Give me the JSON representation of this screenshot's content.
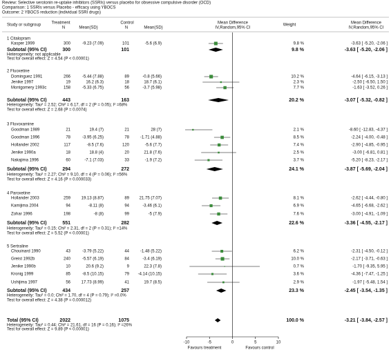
{
  "header": {
    "review": "Review:   Selective serotonin re-uptake inhibitors (SSRIs) versus placebo for obsessive compulsive disorder (OCD)",
    "comparison": "Comparison:   1 SSRIs versus Placebo - efficacy using YBOCS",
    "outcome": "Outcome:   2 YBOCS reduction (individual SSRI drugs)"
  },
  "chart_data": {
    "type": "forest",
    "columns": {
      "study": "Study or subgroup",
      "treatment": "Treatment",
      "n_t": "N",
      "mean_t": "Mean(SD)",
      "control": "Control",
      "n_c": "N",
      "mean_c": "Mean(SD)",
      "md": "Mean Difference",
      "md_method": "IV,Random,95% CI",
      "weight": "Weight",
      "md2": "Mean Difference",
      "md2_method": "IV,Random,95% CI"
    },
    "xlim": [
      -10,
      10
    ],
    "xticks": [
      -10,
      -5,
      0,
      5,
      10
    ],
    "favours_left": "Favours treatment",
    "favours_right": "Favours control",
    "study_color": "#3c8c3c",
    "diamond_color": "#000000",
    "groups": [
      {
        "title": "1 Citalopram",
        "studies": [
          {
            "name": "Kasper 1999",
            "n_t": 300,
            "mean_t": "-9.23 (7.09)",
            "n_c": 101,
            "mean_c": "-5.6 (6.9)",
            "weight": 9.8,
            "weight_label": "9.8 %",
            "md": -3.63,
            "ci": [
              -5.2,
              -2.06
            ],
            "ci_label": "-3.63 [ -5.20, -2.06 ]"
          }
        ],
        "subtotal": {
          "label": "Subtotal (95% CI)",
          "n_t": 300,
          "n_c": 101,
          "weight": 9.8,
          "weight_label": "9.8 %",
          "md": -3.63,
          "ci": [
            -5.2,
            -2.06
          ],
          "ci_label": "-3.63 [ -5.20, -2.06 ]"
        },
        "heterogeneity": "Heterogeneity: not applicable",
        "test": "Test for overall effect: Z = 4.54 (P < 0.00001)"
      },
      {
        "title": "2 Fluoxetine",
        "studies": [
          {
            "name": "Dominguez 1991",
            "n_t": 266,
            "mean_t": "-5.44 (7.88)",
            "n_c": 89,
            "mean_c": "-0.8 (5.66)",
            "weight": 10.2,
            "weight_label": "10.2 %",
            "md": -4.64,
            "ci": [
              -6.15,
              -3.13
            ],
            "ci_label": "-4.64 [ -6.15, -3.13 ]"
          },
          {
            "name": "Jenike 1997",
            "n_t": 19,
            "mean_t": "16.2 (6.3)",
            "n_c": 18,
            "mean_c": "18.7 (6.1)",
            "weight": 2.3,
            "weight_label": "2.3 %",
            "md": -2.5,
            "ci": [
              -6.5,
              1.5
            ],
            "ci_label": "-2.50 [ -6.50, 1.50 ]"
          },
          {
            "name": "Montgomery 1993c",
            "n_t": 158,
            "mean_t": "-5.33 (6.75)",
            "n_c": 56,
            "mean_c": "-3.7 (5.98)",
            "weight": 7.7,
            "weight_label": "7.7 %",
            "md": -1.63,
            "ci": [
              -3.52,
              0.26
            ],
            "ci_label": "-1.63 [ -3.52, 0.26 ]"
          }
        ],
        "subtotal": {
          "label": "Subtotal (95% CI)",
          "n_t": 443,
          "n_c": 163,
          "weight": 20.2,
          "weight_label": "20.2 %",
          "md": -3.07,
          "ci": [
            -5.32,
            -0.82
          ],
          "ci_label": "-3.07 [ -5.32, -0.82 ]"
        },
        "heterogeneity": "Heterogeneity: Tau² = 2.52; Chi² = 6.17, df = 2 (P = 0.05); I² =68%",
        "test": "Test for overall effect: Z = 2.68 (P = 0.0074)"
      },
      {
        "title": "3 Fluvoxamine",
        "studies": [
          {
            "name": "Goodman 1989",
            "n_t": 21,
            "mean_t": "19.4 (7)",
            "n_c": 21,
            "mean_c": "28 (7)",
            "weight": 2.1,
            "weight_label": "2.1 %",
            "md": -8.6,
            "ci": [
              -12.83,
              -4.37
            ],
            "ci_label": "-8.60 [ -12.83, -4.37 ]"
          },
          {
            "name": "Goodman 1996",
            "n_t": 78,
            "mean_t": "-3.95 (6.25)",
            "n_c": 78,
            "mean_c": "-1.71 (4.88)",
            "weight": 8.5,
            "weight_label": "8.5 %",
            "md": -2.24,
            "ci": [
              -4.0,
              -0.48
            ],
            "ci_label": "-2.24 [ -4.00, -0.48 ]"
          },
          {
            "name": "Hollander 2002",
            "n_t": 117,
            "mean_t": "-8.5 (7.6)",
            "n_c": 120,
            "mean_c": "-5.6 (7.7)",
            "weight": 7.4,
            "weight_label": "7.4 %",
            "md": -2.9,
            "ci": [
              -4.85,
              -0.95
            ],
            "ci_label": "-2.90 [ -4.85, -0.95 ]"
          },
          {
            "name": "Jenike 1990a",
            "n_t": 18,
            "mean_t": "18.8 (4)",
            "n_c": 20,
            "mean_c": "21.8 (7.6)",
            "weight": 2.5,
            "weight_label": "2.5 %",
            "md": -3.0,
            "ci": [
              -6.81,
              0.81
            ],
            "ci_label": "-3.00 [ -6.81, 0.81 ]"
          },
          {
            "name": "Nakajima 1996",
            "n_t": 60,
            "mean_t": "-7.1 (7.03)",
            "n_c": 33,
            "mean_c": "-1.9 (7.2)",
            "weight": 3.7,
            "weight_label": "3.7 %",
            "md": -5.2,
            "ci": [
              -8.23,
              -2.17
            ],
            "ci_label": "-5.20 [ -8.23, -2.17 ]"
          }
        ],
        "subtotal": {
          "label": "Subtotal (95% CI)",
          "n_t": 294,
          "n_c": 272,
          "weight": 24.1,
          "weight_label": "24.1 %",
          "md": -3.87,
          "ci": [
            -5.69,
            -2.04
          ],
          "ci_label": "-3.87 [ -5.69, -2.04 ]"
        },
        "heterogeneity": "Heterogeneity: Tau² = 2.27; Chi² = 9.10, df = 4 (P = 0.06); I² =56%",
        "test": "Test for overall effect: Z = 4.16 (P = 0.000033)"
      },
      {
        "title": "4 Paroxetine",
        "studies": [
          {
            "name": "Hollander 2003",
            "n_t": 259,
            "mean_t": "19.13 (8.87)",
            "n_c": 89,
            "mean_c": "21.75 (7.07)",
            "weight": 8.1,
            "weight_label": "8.1 %",
            "md": -2.62,
            "ci": [
              -4.44,
              -0.8
            ],
            "ci_label": "-2.62 [ -4.44, -0.80 ]"
          },
          {
            "name": "Kamijima 2004",
            "n_t": 94,
            "mean_t": "-8.11 (8)",
            "n_c": 94,
            "mean_c": "-3.46 (6.1)",
            "weight": 6.9,
            "weight_label": "6.9 %",
            "md": -4.65,
            "ci": [
              -6.68,
              -2.62
            ],
            "ci_label": "-4.65 [ -6.68, -2.62 ]"
          },
          {
            "name": "Zohar 1996",
            "n_t": 198,
            "mean_t": "-8 (8)",
            "n_c": 99,
            "mean_c": "-5 (7.9)",
            "weight": 7.6,
            "weight_label": "7.6 %",
            "md": -3.0,
            "ci": [
              -4.91,
              -1.09
            ],
            "ci_label": "-3.00 [ -4.91, -1.09 ]"
          }
        ],
        "subtotal": {
          "label": "Subtotal (95% CI)",
          "n_t": 551,
          "n_c": 282,
          "weight": 22.6,
          "weight_label": "22.6 %",
          "md": -3.36,
          "ci": [
            -4.55,
            -2.17
          ],
          "ci_label": "-3.36 [ -4.55, -2.17 ]"
        },
        "heterogeneity": "Heterogeneity: Tau² = 0.15; Chi² = 2.31, df = 2 (P = 0.31); I² =14%",
        "test": "Test for overall effect: Z = 5.52 (P < 0.00001)"
      },
      {
        "title": "5 Sertraline",
        "studies": [
          {
            "name": "Chouinard 1990",
            "n_t": 43,
            "mean_t": "-3.79 (5.22)",
            "n_c": 44,
            "mean_c": "-1.48 (5.22)",
            "weight": 6.2,
            "weight_label": "6.2 %",
            "md": -2.31,
            "ci": [
              -4.5,
              -0.12
            ],
            "ci_label": "-2.31 [ -4.50, -0.12 ]"
          },
          {
            "name": "Greist 1992b",
            "n_t": 240,
            "mean_t": "-5.57 (6.19)",
            "n_c": 84,
            "mean_c": "-3.4 (6.19)",
            "weight": 10.0,
            "weight_label": "10.0 %",
            "md": -2.17,
            "ci": [
              -3.71,
              -0.63
            ],
            "ci_label": "-2.17 [ -3.71, -0.63 ]"
          },
          {
            "name": "Jenike 1990b",
            "n_t": 10,
            "mean_t": "20.6 (9.2)",
            "n_c": 9,
            "mean_c": "22.3 (7.8)",
            "weight": 0.7,
            "weight_label": "0.7 %",
            "md": -1.7,
            "ci": [
              -9.35,
              5.95
            ],
            "ci_label": "-1.70 [ -9.35, 5.95 ]"
          },
          {
            "name": "Kronig 1999",
            "n_t": 85,
            "mean_t": "-8.5 (10.15)",
            "n_c": 79,
            "mean_c": "-4.14 (10.15)",
            "weight": 3.6,
            "weight_label": "3.6 %",
            "md": -4.36,
            "ci": [
              -7.47,
              -1.25
            ],
            "ci_label": "-4.36 [ -7.47, -1.25 ]"
          },
          {
            "name": "Ushijima 1997",
            "n_t": 56,
            "mean_t": "17.73 (8.99)",
            "n_c": 41,
            "mean_c": "19.7 (8.5)",
            "weight": 2.9,
            "weight_label": "2.9 %",
            "md": -1.97,
            "ci": [
              -5.48,
              1.54
            ],
            "ci_label": "-1.97 [ -5.48, 1.54 ]"
          }
        ],
        "subtotal": {
          "label": "Subtotal (95% CI)",
          "n_t": 434,
          "n_c": 257,
          "weight": 23.3,
          "weight_label": "23.3 %",
          "md": -2.45,
          "ci": [
            -3.54,
            -1.35
          ],
          "ci_label": "-2.45 [ -3.54, -1.35 ]"
        },
        "heterogeneity": "Heterogeneity: Tau² = 0.0; Chi² = 1.70, df = 4 (P = 0.79); I² =0.0%",
        "test": "Test for overall effect: Z = 4.38 (P = 0.000012)"
      }
    ],
    "total": {
      "label": "Total (95% CI)",
      "n_t": 2022,
      "n_c": 1075,
      "weight": 100.0,
      "weight_label": "100.0 %",
      "md": -3.21,
      "ci": [
        -3.84,
        -2.57
      ],
      "ci_label": "-3.21 [ -3.84, -2.57 ]",
      "heterogeneity": "Heterogeneity: Tau² = 0.44; Chi² = 21.61, df = 16 (P = 0.16); I² =26%",
      "test": "Test for overall effect: Z = 9.89 (P < 0.00001)"
    }
  }
}
